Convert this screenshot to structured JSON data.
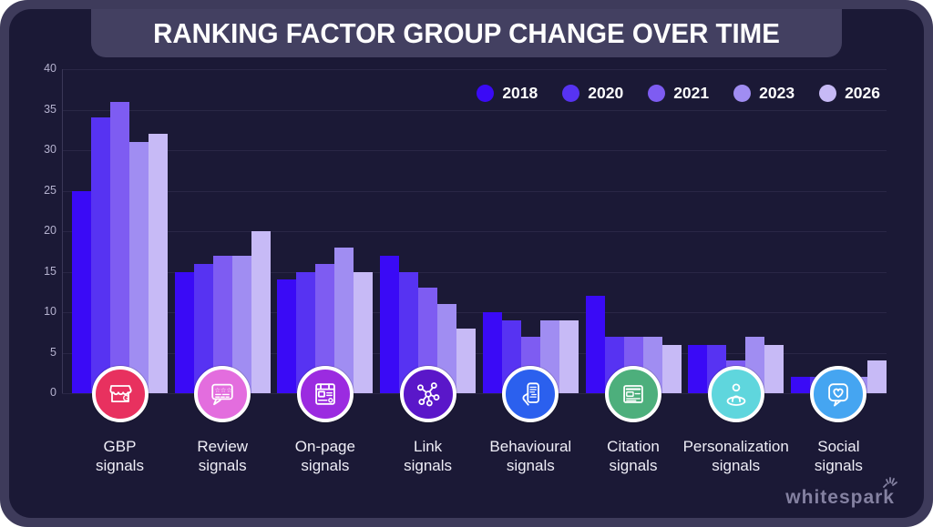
{
  "title": "RANKING FACTOR GROUP CHANGE OVER TIME",
  "brand": {
    "logo_text": "whitespark"
  },
  "chart_data": {
    "type": "bar",
    "title": "RANKING FACTOR GROUP CHANGE OVER TIME",
    "categories": [
      "GBP signals",
      "Review signals",
      "On-page signals",
      "Link signals",
      "Behavioural signals",
      "Citation signals",
      "Personalization signals",
      "Social signals"
    ],
    "series": [
      {
        "name": "2018",
        "color": "#3A0AF6",
        "values": [
          25,
          15,
          14,
          17,
          10,
          12,
          6,
          2
        ]
      },
      {
        "name": "2020",
        "color": "#5733F2",
        "values": [
          34,
          16,
          15,
          15,
          9,
          7,
          6,
          2
        ]
      },
      {
        "name": "2021",
        "color": "#7E5CF2",
        "values": [
          36,
          17,
          16,
          13,
          7,
          7,
          4,
          2
        ]
      },
      {
        "name": "2023",
        "color": "#A08DF2",
        "values": [
          31,
          17,
          18,
          11,
          9,
          7,
          7,
          2
        ]
      },
      {
        "name": "2026",
        "color": "#C7BAF6",
        "values": [
          32,
          20,
          15,
          8,
          9,
          6,
          6,
          4
        ]
      }
    ],
    "xlabel": "",
    "ylabel": "",
    "ylim": [
      0,
      40
    ],
    "yticks": [
      0,
      5,
      10,
      15,
      20,
      25,
      30,
      35,
      40
    ],
    "grid": true,
    "legend_position": "top-right"
  },
  "groups": [
    {
      "line1": "GBP",
      "line2": "signals",
      "icon": "storefront-icon",
      "icon_color": "#E8315F"
    },
    {
      "line1": "Review",
      "line2": "signals",
      "icon": "review-stars-icon",
      "icon_color": "#E36DDE"
    },
    {
      "line1": "On-page",
      "line2": "signals",
      "icon": "browser-page-icon",
      "icon_color": "#9B2BE0"
    },
    {
      "line1": "Link",
      "line2": "signals",
      "icon": "network-nodes-icon",
      "icon_color": "#5A17C9"
    },
    {
      "line1": "Behavioural",
      "line2": "signals",
      "icon": "hand-phone-icon",
      "icon_color": "#2B60EE"
    },
    {
      "line1": "Citation",
      "line2": "signals",
      "icon": "article-icon",
      "icon_color": "#4DAF7C"
    },
    {
      "line1": "Personalization",
      "line2": "signals",
      "icon": "person-icon",
      "icon_color": "#5FD6DD"
    },
    {
      "line1": "Social",
      "line2": "signals",
      "icon": "chat-heart-icon",
      "icon_color": "#45A5F1"
    }
  ],
  "colors": {
    "page_bg": "#FFFFFF",
    "frame": "#3E3B5B",
    "panel_bg": "#1B1936",
    "banner_bg": "#434061",
    "title_text": "#FFFFFF",
    "grid_line": "#2A2746",
    "axis_line": "#3A3758",
    "tick_text": "#B5B2CF",
    "category_text": "#EFEEF7",
    "legend_text": "#FFFFFF",
    "icon_ring": "#FFFFFF",
    "logo_text": "#8481A1"
  }
}
